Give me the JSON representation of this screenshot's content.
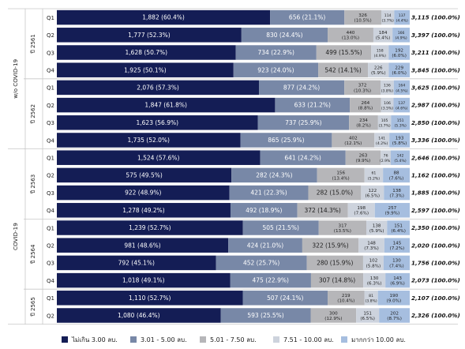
{
  "chart_data": {
    "type": "bar",
    "orientation": "horizontal",
    "stacked": true,
    "legend_position": "bottom",
    "colors": [
      "#141d55",
      "#7888a7",
      "#b6b6b9",
      "#cdd3dd",
      "#a6bedf"
    ],
    "legend": [
      "ไม่เกิน 3.00 ลบ.",
      "3.01 - 5.00 ลบ.",
      "5.01 - 7.50 ลบ.",
      "7.51 - 10.00 ลบ.",
      "มากกว่า 10.00 ลบ."
    ],
    "groups": [
      {
        "label": "w/o COVID-19",
        "years": [
          {
            "label": "ปี 2561",
            "quarters": [
              "Q1",
              "Q2",
              "Q3",
              "Q4"
            ]
          },
          {
            "label": "ปี 2562",
            "quarters": [
              "Q1",
              "Q2",
              "Q3",
              "Q4"
            ]
          }
        ]
      },
      {
        "label": "COVID-19",
        "years": [
          {
            "label": "ปี 2563",
            "quarters": [
              "Q1",
              "Q2",
              "Q3",
              "Q4"
            ]
          },
          {
            "label": "ปี 2564",
            "quarters": [
              "Q1",
              "Q2",
              "Q3",
              "Q4"
            ]
          },
          {
            "label": "ปี 2565",
            "quarters": [
              "Q1",
              "Q2"
            ]
          }
        ]
      }
    ],
    "rows": [
      {
        "values": [
          1882,
          656,
          326,
          114,
          137
        ],
        "labels": [
          "1,882 (60.4%)",
          "656 (21.1%)",
          "326 (10.5%)",
          "114 (3.7%)",
          "137 (4.4%)"
        ],
        "total": "3,115 (100.0%)"
      },
      {
        "values": [
          1777,
          830,
          440,
          184,
          166
        ],
        "labels": [
          "1,777 (52.3%)",
          "830 (24.4%)",
          "440 (13.0%)",
          "184 (5.4%)",
          "166 (4.9%)"
        ],
        "total": "3,397 (100.0%)"
      },
      {
        "values": [
          1628,
          734,
          499,
          158,
          192
        ],
        "labels": [
          "1,628 (50.7%)",
          "734 (22.9%)",
          "499 (15.5%)",
          "158 (4.9%)",
          "192 (6.0%)"
        ],
        "total": "3,211 (100.0%)"
      },
      {
        "values": [
          1925,
          923,
          542,
          226,
          229
        ],
        "labels": [
          "1,925 (50.1%)",
          "923 (24.0%)",
          "542 (14.1%)",
          "226 (5.9%)",
          "229 (6.0%)"
        ],
        "total": "3,845 (100.0%)"
      },
      {
        "values": [
          2076,
          877,
          372,
          136,
          164
        ],
        "labels": [
          "2,076 (57.3%)",
          "877 (24.2%)",
          "372 (10.3%)",
          "136 (3.8%)",
          "164 (4.5%)"
        ],
        "total": "3,625 (100.0%)"
      },
      {
        "values": [
          1847,
          633,
          264,
          106,
          137
        ],
        "labels": [
          "1,847 (61.8%)",
          "633 (21.2%)",
          "264 (8.8%)",
          "106 (3.5%)",
          "137 (4.6%)"
        ],
        "total": "2,987 (100.0%)"
      },
      {
        "values": [
          1623,
          737,
          234,
          105,
          151
        ],
        "labels": [
          "1,623 (56.9%)",
          "737 (25.9%)",
          "234 (8.2%)",
          "105 (3.7%)",
          "151 (5.3%)"
        ],
        "total": "2,850 (100.0%)"
      },
      {
        "values": [
          1735,
          865,
          402,
          141,
          193
        ],
        "labels": [
          "1,735 (52.0%)",
          "865 (25.9%)",
          "402 (12.1%)",
          "141 (4.2%)",
          "193 (5.8%)"
        ],
        "total": "3,336 (100.0%)"
      },
      {
        "values": [
          1524,
          641,
          263,
          76,
          142
        ],
        "labels": [
          "1,524 (57.6%)",
          "641 (24.2%)",
          "263 (9.9%)",
          "76 (2.9%)",
          "142 (5.4%)"
        ],
        "total": "2,646 (100.0%)"
      },
      {
        "values": [
          575,
          282,
          156,
          61,
          88
        ],
        "labels": [
          "575 (49.5%)",
          "282 (24.3%)",
          "156 (13.4%)",
          "61 (5.2%)",
          "88 (7.6%)"
        ],
        "total": "1,162 (100.0%)"
      },
      {
        "values": [
          922,
          421,
          282,
          122,
          138
        ],
        "labels": [
          "922 (48.9%)",
          "421 (22.3%)",
          "282 (15.0%)",
          "122 (6.5%)",
          "138 (7.3%)"
        ],
        "total": "1,885 (100.0%)"
      },
      {
        "values": [
          1278,
          492,
          372,
          198,
          257
        ],
        "labels": [
          "1,278 (49.2%)",
          "492 (18.9%)",
          "372 (14.3%)",
          "198 (7.6%)",
          "257 (9.9%)"
        ],
        "total": "2,597 (100.0%)"
      },
      {
        "values": [
          1239,
          505,
          317,
          138,
          151
        ],
        "labels": [
          "1,239 (52.7%)",
          "505 (21.5%)",
          "317 (13.5%)",
          "138 (5.9%)",
          "151 (6.4%)"
        ],
        "total": "2,350 (100.0%)"
      },
      {
        "values": [
          981,
          424,
          322,
          148,
          145
        ],
        "labels": [
          "981 (48.6%)",
          "424 (21.0%)",
          "322 (15.9%)",
          "148 (7.3%)",
          "145 (7.2%)"
        ],
        "total": "2,020 (100.0%)"
      },
      {
        "values": [
          792,
          452,
          280,
          102,
          130
        ],
        "labels": [
          "792 (45.1%)",
          "452 (25.7%)",
          "280 (15.9%)",
          "102 (5.8%)",
          "130 (7.4%)"
        ],
        "total": "1,756 (100.0%)"
      },
      {
        "values": [
          1018,
          475,
          307,
          130,
          143
        ],
        "labels": [
          "1,018 (49.1%)",
          "475 (22.9%)",
          "307 (14.8%)",
          "130 (6.3%)",
          "143 (6.9%)"
        ],
        "total": "2,073 (100.0%)"
      },
      {
        "values": [
          1110,
          507,
          219,
          81,
          190
        ],
        "labels": [
          "1,110 (52.7%)",
          "507 (24.1%)",
          "219 (10.4%)",
          "81 (3.8%)",
          "190 (9.0%)"
        ],
        "total": "2,107 (100.0%)"
      },
      {
        "values": [
          1080,
          593,
          300,
          151,
          202
        ],
        "labels": [
          "1,080 (46.4%)",
          "593 (25.5%)",
          "300 (12.9%)",
          "151 (6.5%)",
          "202 (8.7%)"
        ],
        "total": "2,326 (100.0%)"
      }
    ]
  }
}
